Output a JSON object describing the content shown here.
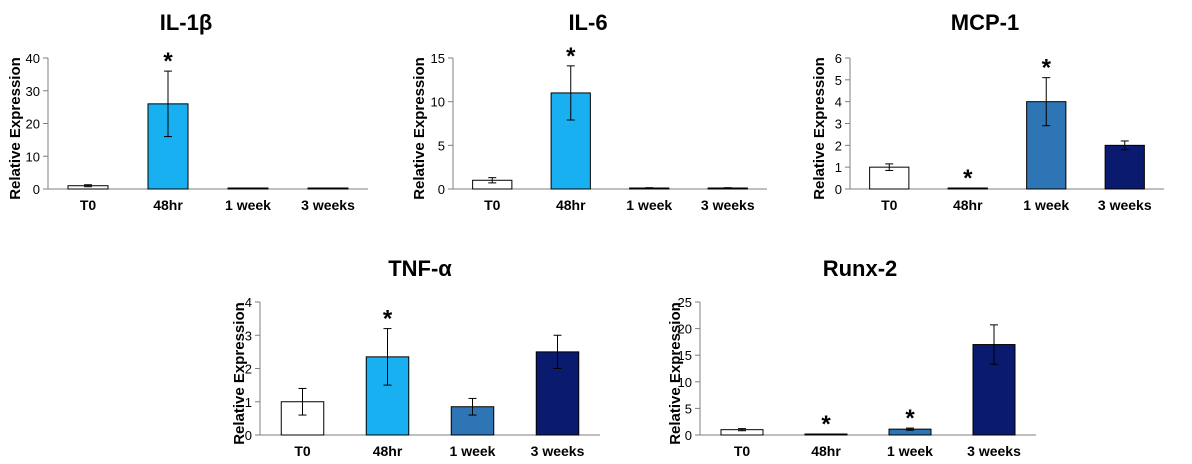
{
  "figure": {
    "colors": {
      "T0": "#ffffff",
      "48hr": "#18b0f0",
      "1 week": "#2e75b6",
      "3 weeks": "#0a1a6e",
      "outline": "#000000",
      "axis": "#7f7f7f"
    }
  },
  "chart_data": [
    {
      "type": "bar",
      "title": "IL-1β",
      "ylabel": "Relative Expression",
      "xlabel": "",
      "categories": [
        "T0",
        "48hr",
        "1 week",
        "3 weeks"
      ],
      "values": [
        1,
        26,
        0.2,
        0.2
      ],
      "errors": [
        0.3,
        10,
        0.1,
        0.1
      ],
      "significant": [
        "",
        "*",
        "",
        ""
      ],
      "ylim": [
        0,
        40
      ],
      "yticks": [
        0,
        10,
        20,
        30,
        40
      ],
      "grid": false
    },
    {
      "type": "bar",
      "title": "IL-6",
      "ylabel": "Relative Expression",
      "xlabel": "",
      "categories": [
        "T0",
        "48hr",
        "1 week",
        "3 weeks"
      ],
      "values": [
        1,
        11,
        0.1,
        0.1
      ],
      "errors": [
        0.3,
        3.1,
        0.05,
        0.05
      ],
      "significant": [
        "",
        "*",
        "",
        ""
      ],
      "ylim": [
        0,
        15
      ],
      "yticks": [
        0,
        5,
        10,
        15
      ],
      "grid": false
    },
    {
      "type": "bar",
      "title": "MCP-1",
      "ylabel": "Relative Expression",
      "xlabel": "",
      "categories": [
        "T0",
        "48hr",
        "1 week",
        "3 weeks"
      ],
      "values": [
        1,
        0.03,
        4,
        2
      ],
      "errors": [
        0.15,
        0.01,
        1.1,
        0.2
      ],
      "significant": [
        "",
        "*",
        "*",
        ""
      ],
      "ylim": [
        0,
        6
      ],
      "yticks": [
        0,
        1,
        2,
        3,
        4,
        5,
        6
      ],
      "grid": false
    },
    {
      "type": "bar",
      "title": "TNF-α",
      "ylabel": "Relative Expression",
      "xlabel": "",
      "categories": [
        "T0",
        "48hr",
        "1 week",
        "3 weeks"
      ],
      "values": [
        1,
        2.35,
        0.85,
        2.5
      ],
      "errors": [
        0.4,
        0.85,
        0.25,
        0.5
      ],
      "significant": [
        "",
        "*",
        "",
        ""
      ],
      "ylim": [
        0,
        4
      ],
      "yticks": [
        0,
        1,
        2,
        3,
        4
      ],
      "grid": false
    },
    {
      "type": "bar",
      "title": "Runx-2",
      "ylabel": "Relative Expression",
      "xlabel": "",
      "categories": [
        "T0",
        "48hr",
        "1 week",
        "3 weeks"
      ],
      "values": [
        1,
        0.1,
        1.1,
        17
      ],
      "errors": [
        0.2,
        0.05,
        0.2,
        3.7
      ],
      "significant": [
        "",
        "*",
        "*",
        ""
      ],
      "ylim": [
        0,
        25
      ],
      "yticks": [
        0,
        5,
        10,
        15,
        20,
        25
      ],
      "grid": false
    }
  ]
}
